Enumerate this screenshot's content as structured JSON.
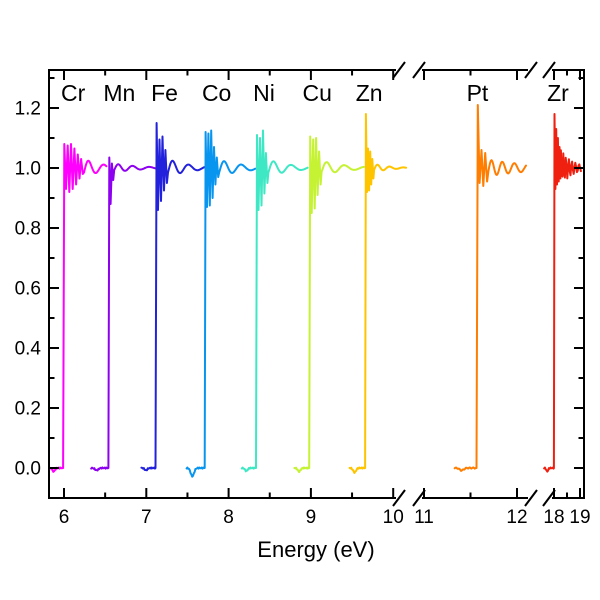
{
  "chart_data": {
    "type": "line",
    "title": "",
    "xlabel": "Energy (eV)",
    "ylabel": "",
    "ylim": [
      -0.08,
      1.33
    ],
    "grid": false,
    "background": "#FFFFFF",
    "axis_color": "#000000",
    "yticks": {
      "major": [
        0.0,
        0.2,
        0.4,
        0.6,
        0.8,
        1.0,
        1.2
      ],
      "labels": [
        "0.0",
        "0.2",
        "0.4",
        "0.6",
        "0.8",
        "1.0",
        "1.2"
      ],
      "minor": [
        0.1,
        0.3,
        0.5,
        0.7,
        0.9,
        1.1,
        1.3
      ]
    },
    "x_segments": [
      {
        "range": [
          5.82,
          10.25
        ],
        "major_ticks": [
          6,
          7,
          8,
          9,
          10
        ],
        "major_labels": [
          "6",
          "7",
          "8",
          "9",
          "10"
        ],
        "minor_ticks": [
          6.5,
          7.5,
          8.5,
          9.5
        ]
      },
      {
        "range": [
          10.95,
          12.2
        ],
        "major_ticks": [
          11,
          12
        ],
        "major_labels": [
          "11",
          "12"
        ],
        "minor_ticks": [
          11.5
        ]
      },
      {
        "range": [
          17.4,
          19.2
        ],
        "major_ticks": [
          18,
          19
        ],
        "major_labels": [
          "18",
          "19"
        ],
        "minor_ticks": [
          18.5
        ]
      }
    ],
    "x_breaks": [
      [
        10,
        11
      ],
      [
        12,
        18
      ]
    ],
    "series": [
      {
        "label": "Cr",
        "color": "#FF00FF",
        "edge_kev": 5.989,
        "start_kev": 5.82,
        "end_kev": 6.52,
        "peaks": [
          1.08,
          0.93,
          1.075,
          0.92,
          1.08,
          0.93,
          1.065,
          0.945,
          1.045,
          0.965,
          1.03,
          0.98
        ],
        "peak_hw_kev": 0.0205,
        "tail_amp": 0.03,
        "tail_period_kev": 0.16,
        "tail_decay_kev": 0.25,
        "pre_dip": 0.012,
        "label_dx": 10
      },
      {
        "label": "Mn",
        "color": "#8E00F0",
        "edge_kev": 6.539,
        "start_kev": 6.33,
        "end_kev": 7.13,
        "peaks": [
          1.035,
          0.88,
          1.015,
          0.96
        ],
        "peak_hw_kev": 0.016,
        "tail_amp": 0.015,
        "tail_period_kev": 0.15,
        "tail_decay_kev": 0.3,
        "pre_dip": 0.008,
        "label_dx": 11
      },
      {
        "label": "Fe",
        "color": "#2222DD",
        "edge_kev": 7.112,
        "start_kev": 6.94,
        "end_kev": 7.72,
        "peaks": [
          1.15,
          0.86,
          1.095,
          0.89,
          1.105,
          0.925,
          1.06,
          0.95
        ],
        "peak_hw_kev": 0.018,
        "tail_amp": 0.03,
        "tail_period_kev": 0.165,
        "tail_decay_kev": 0.26,
        "pre_dip": 0.008,
        "label_dx": 9
      },
      {
        "label": "Co",
        "color": "#0895F0",
        "edge_kev": 7.709,
        "start_kev": 7.49,
        "end_kev": 8.33,
        "peaks": [
          1.12,
          0.87,
          1.115,
          0.875,
          1.125,
          0.9,
          1.07,
          0.945,
          1.035,
          0.97
        ],
        "peak_hw_kev": 0.017,
        "tail_amp": 0.028,
        "tail_period_kev": 0.175,
        "tail_decay_kev": 0.3,
        "pre_dip": 0.028,
        "label_dx": 12
      },
      {
        "label": "Ni",
        "color": "#3FE8C4",
        "edge_kev": 8.333,
        "start_kev": 8.16,
        "end_kev": 8.97,
        "peaks": [
          1.11,
          0.86,
          1.1,
          0.875,
          1.125,
          0.915,
          1.05,
          0.95
        ],
        "peak_hw_kev": 0.018,
        "tail_amp": 0.028,
        "tail_period_kev": 0.18,
        "tail_decay_kev": 0.28,
        "pre_dip": 0.01,
        "label_dx": 8
      },
      {
        "label": "Cu",
        "color": "#C5F233",
        "edge_kev": 8.979,
        "start_kev": 8.8,
        "end_kev": 9.65,
        "peaks": [
          1.105,
          0.85,
          1.095,
          0.865,
          1.1,
          0.91,
          1.055,
          0.945
        ],
        "peak_hw_kev": 0.018,
        "tail_amp": 0.024,
        "tail_period_kev": 0.18,
        "tail_decay_kev": 0.3,
        "pre_dip": 0.012,
        "label_dx": 8
      },
      {
        "label": "Zn",
        "color": "#FFC400",
        "edge_kev": 9.659,
        "start_kev": 9.47,
        "end_kev": 10.16,
        "peaks": [
          1.18,
          0.92,
          1.065,
          0.925,
          1.055,
          0.945,
          1.03,
          0.965
        ],
        "peak_hw_kev": 0.013,
        "tail_amp": 0.014,
        "tail_period_kev": 0.13,
        "tail_decay_kev": 0.18,
        "pre_dip": 0.015,
        "label_dx": 4
      },
      {
        "label": "Pt",
        "color": "#FF7D00",
        "edge_kev": 11.564,
        "start_kev": 11.33,
        "end_kev": 12.1,
        "peaks": [
          1.21,
          0.95,
          1.06,
          0.94,
          1.05,
          0.955
        ],
        "peak_hw_kev": 0.02,
        "tail_amp": 0.028,
        "tail_period_kev": 0.105,
        "tail_decay_kev": 0.5,
        "pre_dip": 0.008,
        "label_dx": 1
      },
      {
        "label": "Zr",
        "color": "#F02011",
        "edge_kev": 17.998,
        "start_kev": 17.62,
        "end_kev": 19.05,
        "peaks": [
          1.18,
          0.93,
          1.13,
          0.945,
          1.1,
          0.955,
          1.07,
          0.965
        ],
        "peak_hw_kev": 0.032,
        "tail_amp": 0.06,
        "tail_period_kev": 0.085,
        "tail_decay_kev": 0.45,
        "pre_dip": 0.012,
        "label_dx": 4
      }
    ]
  }
}
